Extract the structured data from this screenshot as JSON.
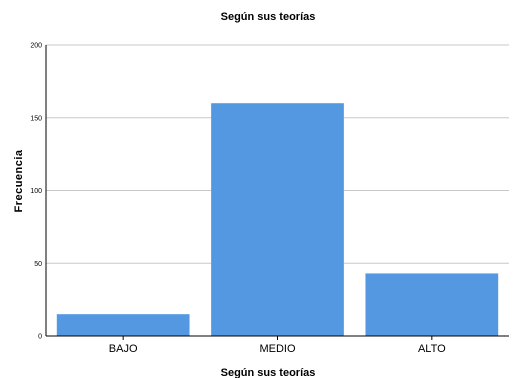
{
  "chart_data": {
    "type": "bar",
    "title": "Según sus teorías",
    "xlabel": "Según sus teorías",
    "ylabel": "Frecuencia",
    "categories": [
      "BAJO",
      "MEDIO",
      "ALTO"
    ],
    "values": [
      15,
      160,
      43
    ],
    "ylim": [
      0,
      200
    ],
    "yticks": [
      "0",
      "50",
      "100",
      "150",
      "200"
    ],
    "grid": true,
    "bar_color": "#5598e2",
    "grid_color": "#c8c8c8"
  }
}
